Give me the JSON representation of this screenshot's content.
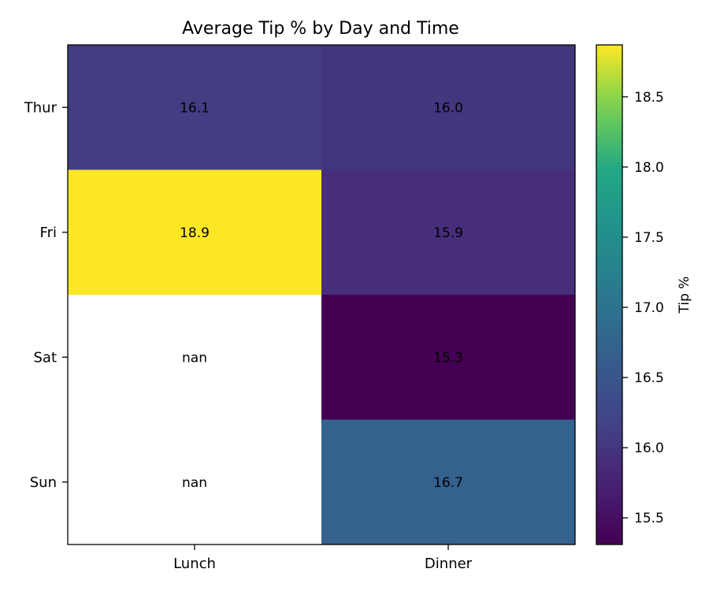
{
  "chart_data": {
    "type": "heatmap",
    "title": "Average Tip % by Day and Time",
    "columns": [
      "Lunch",
      "Dinner"
    ],
    "rows": [
      "Thur",
      "Fri",
      "Sat",
      "Sun"
    ],
    "values": [
      [
        16.1,
        16.0
      ],
      [
        18.9,
        15.9
      ],
      [
        null,
        15.3
      ],
      [
        null,
        16.7
      ]
    ],
    "cell_labels": [
      [
        "16.1",
        "16.0"
      ],
      [
        "18.9",
        "15.9"
      ],
      [
        "nan",
        "15.3"
      ],
      [
        "nan",
        "16.7"
      ]
    ],
    "missing_color": "#ffffff",
    "colormap": "viridis",
    "colorbar": {
      "label": "Tip %",
      "vmin": 15.31,
      "vmax": 18.87,
      "ticks": [
        15.5,
        16.0,
        16.5,
        17.0,
        17.5,
        18.0,
        18.5
      ],
      "tick_labels": [
        "15.5",
        "16.0",
        "16.5",
        "17.0",
        "17.5",
        "18.0",
        "18.5"
      ]
    }
  }
}
